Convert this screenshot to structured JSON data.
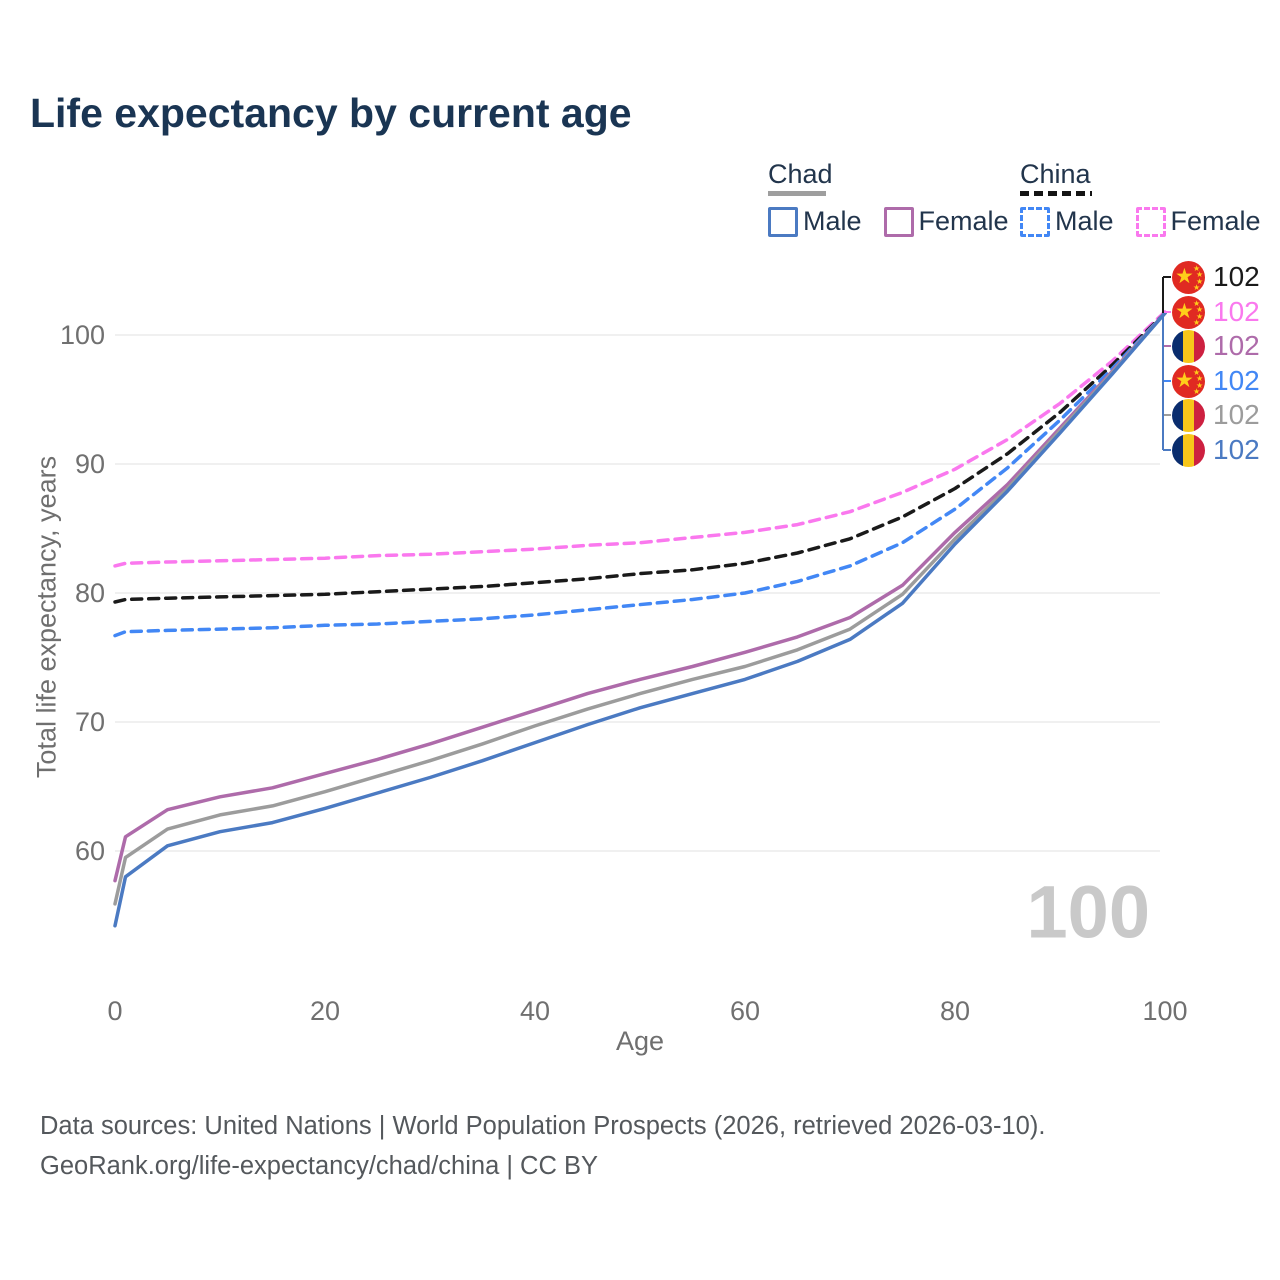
{
  "title": "Life expectancy by current age",
  "legend": {
    "chad": {
      "label": "Chad",
      "male_label": "Male",
      "female_label": "Female"
    },
    "china": {
      "label": "China",
      "male_label": "Male",
      "female_label": "Female"
    }
  },
  "axes": {
    "x": {
      "title": "Age",
      "ticks": [
        0,
        20,
        40,
        60,
        80,
        100
      ],
      "range": [
        0,
        100
      ]
    },
    "y": {
      "title": "Total life expectancy, years",
      "ticks": [
        60,
        70,
        80,
        90,
        100
      ],
      "range": [
        54,
        103
      ]
    }
  },
  "watermark": "100",
  "end_labels": [
    {
      "flag": "china",
      "value": "102",
      "color": "#1a1a1a",
      "series": "China mean"
    },
    {
      "flag": "china",
      "value": "102",
      "color": "#fa78ee",
      "series": "China Female"
    },
    {
      "flag": "chad",
      "value": "102",
      "color": "#ae6baa",
      "series": "Chad Female"
    },
    {
      "flag": "china",
      "value": "102",
      "color": "#4287f5",
      "series": "China Male"
    },
    {
      "flag": "chad",
      "value": "102",
      "color": "#9c9c9c",
      "series": "Chad mean"
    },
    {
      "flag": "chad",
      "value": "102",
      "color": "#4b7ac2",
      "series": "Chad Male"
    }
  ],
  "footer": {
    "line1": "Data sources: United Nations | World Population Prospects (2026, retrieved 2026-03-10).",
    "line2": "GeoRank.org/life-expectancy/chad/china | CC BY"
  },
  "colors": {
    "title_text": "#1a3553",
    "legend_text": "#22354c",
    "tick_text": "#707070",
    "gridline": "#e6e6e6",
    "watermark": "#c9c9c9",
    "chad_male": "#4b7ac2",
    "chad_female": "#ae6baa",
    "chad_mean": "#9c9c9c",
    "china_male": "#4287f5",
    "china_female": "#fa78ee",
    "china_mean": "#1a1a1a"
  },
  "chart_data": {
    "type": "line",
    "title": "Life expectancy by current age",
    "xlabel": "Age",
    "ylabel": "Total life expectancy, years",
    "xlim": [
      0,
      100
    ],
    "ylim": [
      54,
      103
    ],
    "grid": "horizontal-only",
    "legend_position": "top-right",
    "x": [
      0,
      1,
      5,
      10,
      15,
      20,
      25,
      30,
      35,
      40,
      45,
      50,
      55,
      60,
      65,
      70,
      75,
      80,
      85,
      90,
      95,
      100
    ],
    "series": [
      {
        "name": "China Female",
        "country": "China",
        "style": "dashed",
        "color": "#fa78ee",
        "values": [
          82.1,
          82.3,
          82.4,
          82.5,
          82.6,
          82.7,
          82.9,
          83.0,
          83.2,
          83.4,
          83.7,
          83.9,
          84.3,
          84.7,
          85.3,
          86.3,
          87.8,
          89.6,
          91.9,
          94.7,
          98.0,
          101.8
        ]
      },
      {
        "name": "China mean",
        "country": "China",
        "style": "dashed",
        "color": "#1a1a1a",
        "values": [
          79.3,
          79.5,
          79.6,
          79.7,
          79.8,
          79.9,
          80.1,
          80.3,
          80.5,
          80.8,
          81.1,
          81.5,
          81.8,
          82.3,
          83.1,
          84.2,
          85.9,
          88.1,
          90.8,
          94.0,
          97.7,
          101.7
        ]
      },
      {
        "name": "China Male",
        "country": "China",
        "style": "dashed",
        "color": "#4287f5",
        "values": [
          76.7,
          77.0,
          77.1,
          77.2,
          77.3,
          77.5,
          77.6,
          77.8,
          78.0,
          78.3,
          78.7,
          79.1,
          79.5,
          80.0,
          80.9,
          82.1,
          83.9,
          86.5,
          89.7,
          93.4,
          97.4,
          101.7
        ]
      },
      {
        "name": "Chad Female",
        "country": "Chad",
        "style": "solid",
        "color": "#ae6baa",
        "values": [
          57.7,
          61.1,
          63.2,
          64.2,
          64.9,
          66.0,
          67.1,
          68.3,
          69.6,
          70.9,
          72.2,
          73.3,
          74.3,
          75.4,
          76.6,
          78.1,
          80.6,
          84.7,
          88.4,
          92.8,
          97.2,
          101.7
        ]
      },
      {
        "name": "Chad mean",
        "country": "Chad",
        "style": "solid",
        "color": "#9c9c9c",
        "values": [
          55.9,
          59.5,
          61.7,
          62.8,
          63.5,
          64.6,
          65.8,
          67.0,
          68.3,
          69.7,
          71.0,
          72.2,
          73.3,
          74.3,
          75.6,
          77.2,
          79.9,
          84.2,
          88.1,
          92.6,
          97.1,
          101.7
        ]
      },
      {
        "name": "Chad Male",
        "country": "Chad",
        "style": "solid",
        "color": "#4b7ac2",
        "values": [
          54.2,
          58.0,
          60.4,
          61.5,
          62.2,
          63.3,
          64.5,
          65.7,
          67.0,
          68.4,
          69.8,
          71.1,
          72.2,
          73.3,
          74.7,
          76.4,
          79.2,
          83.8,
          87.9,
          92.4,
          97.0,
          101.7
        ]
      }
    ],
    "end_value_labels": [
      "102",
      "102",
      "102",
      "102",
      "102",
      "102"
    ]
  }
}
